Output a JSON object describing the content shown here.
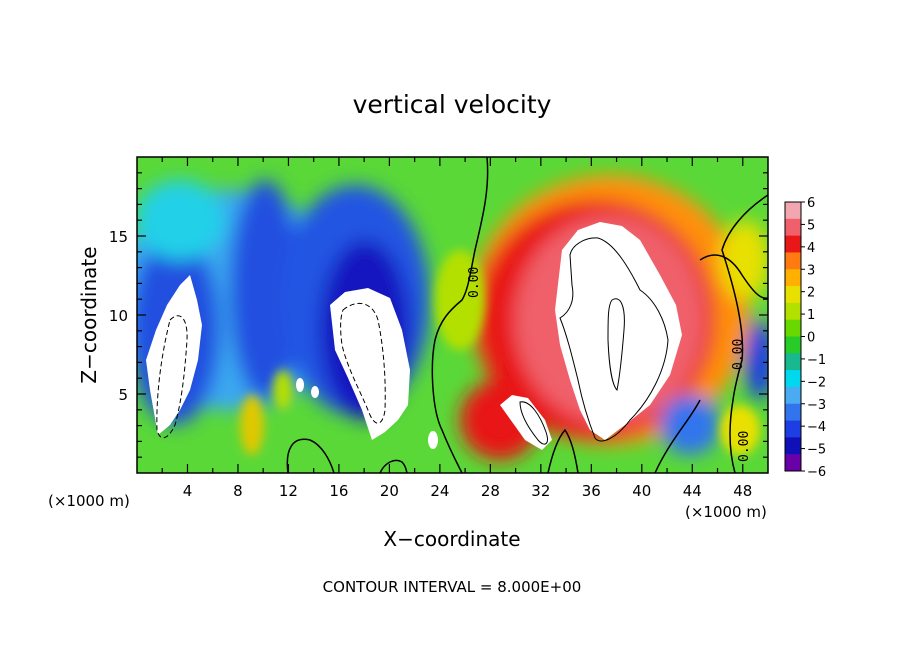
{
  "chart_data": {
    "type": "heatmap",
    "title": "vertical velocity",
    "xlabel": "X−coordinate",
    "ylabel": "Z−coordinate",
    "x_unit": "(×1000 m)",
    "xlim": [
      0,
      50
    ],
    "ylim": [
      0,
      20
    ],
    "x_ticks": [
      4,
      8,
      12,
      16,
      20,
      24,
      28,
      32,
      36,
      40,
      44,
      48
    ],
    "y_ticks": [
      5,
      10,
      15
    ],
    "colorbar": {
      "range": [
        -6,
        6
      ],
      "ticks": [
        "6",
        "5",
        "4",
        "3",
        "2",
        "1",
        "0",
        "−1",
        "−2",
        "−3",
        "−4",
        "−5",
        "−6"
      ],
      "colors": [
        "#f2a6b0",
        "#f0606a",
        "#e81818",
        "#ff7a10",
        "#ffb000",
        "#e8e000",
        "#b4e000",
        "#68d800",
        "#28cc28",
        "#18b890",
        "#00d8f0",
        "#4aaaf2",
        "#3274ee",
        "#1c3ee2",
        "#1010b8",
        "#6a00a8"
      ],
      "placement": "right"
    },
    "contour_labels": [
      "0.00",
      "0.00",
      "0.00"
    ],
    "contour_interval_text": "CONTOUR INTERVAL = 8.000E+00"
  }
}
